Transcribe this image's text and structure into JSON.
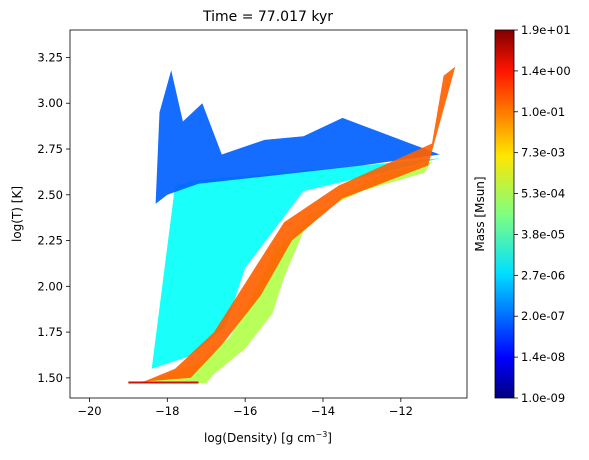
{
  "chart_data": {
    "type": "heatmap",
    "title": "Time = 77.017 kyr",
    "xlabel": "log(Density) [g cm",
    "xlabel_sup": "−3",
    "xlabel_end": "]",
    "ylabel": "log(T) [K]",
    "colorbar_label": "Mass [Msun]",
    "xlim": [
      -20.5,
      -10.3
    ],
    "ylim": [
      1.39,
      3.4
    ],
    "x_ticks": [
      -20,
      -18,
      -16,
      -14,
      -12
    ],
    "x_tick_labels": [
      "−20",
      "−18",
      "−16",
      "−14",
      "−12"
    ],
    "y_ticks": [
      1.5,
      1.75,
      2.0,
      2.25,
      2.5,
      2.75,
      3.0,
      3.25
    ],
    "y_tick_labels": [
      "1.50",
      "1.75",
      "2.00",
      "2.25",
      "2.50",
      "2.75",
      "3.00",
      "3.25"
    ],
    "colorbar_ticks": [
      "1.0e-09",
      "1.4e-08",
      "2.0e-07",
      "2.7e-06",
      "3.8e-05",
      "5.3e-04",
      "7.3e-03",
      "1.0e-01",
      "1.4e+00",
      "1.9e+01"
    ],
    "colormap": "jet",
    "log_color_scale": true,
    "grid": false,
    "regions": [
      {
        "name": "cold-dense-band",
        "points": [
          [
            -19.0,
            1.47
          ],
          [
            -17.0,
            1.47
          ],
          [
            -16.8,
            1.52
          ],
          [
            -16.0,
            1.66
          ],
          [
            -15.3,
            1.85
          ],
          [
            -15.0,
            2.05
          ],
          [
            -14.5,
            2.3
          ],
          [
            -13.6,
            2.48
          ],
          [
            -12.6,
            2.6
          ],
          [
            -11.2,
            2.68
          ],
          [
            -11.4,
            2.62
          ],
          [
            -13.0,
            2.52
          ],
          [
            -14.2,
            2.4
          ],
          [
            -15.2,
            2.2
          ],
          [
            -15.8,
            1.95
          ],
          [
            -16.4,
            1.72
          ],
          [
            -17.2,
            1.58
          ],
          [
            -18.4,
            1.49
          ]
        ],
        "level": 0.55
      },
      {
        "name": "warm-diffuse",
        "points": [
          [
            -18.4,
            1.55
          ],
          [
            -17.8,
            2.55
          ],
          [
            -17.2,
            2.58
          ],
          [
            -15.2,
            2.62
          ],
          [
            -13.0,
            2.66
          ],
          [
            -11.0,
            2.7
          ],
          [
            -12.5,
            2.62
          ],
          [
            -14.5,
            2.52
          ],
          [
            -16.0,
            2.1
          ],
          [
            -16.5,
            1.78
          ],
          [
            -17.4,
            1.62
          ]
        ],
        "level": 0.38
      },
      {
        "name": "hot-high",
        "points": [
          [
            -18.3,
            2.45
          ],
          [
            -18.2,
            2.95
          ],
          [
            -17.9,
            3.18
          ],
          [
            -17.6,
            2.9
          ],
          [
            -17.1,
            3.0
          ],
          [
            -16.6,
            2.72
          ],
          [
            -15.5,
            2.8
          ],
          [
            -14.5,
            2.82
          ],
          [
            -13.5,
            2.92
          ],
          [
            -12.0,
            2.8
          ],
          [
            -11.0,
            2.72
          ],
          [
            -13.0,
            2.66
          ],
          [
            -15.5,
            2.6
          ],
          [
            -17.2,
            2.56
          ],
          [
            -18.0,
            2.5
          ]
        ],
        "level": 0.22
      },
      {
        "name": "ridge",
        "points": [
          [
            -18.6,
            1.48
          ],
          [
            -17.4,
            1.5
          ],
          [
            -16.6,
            1.68
          ],
          [
            -15.6,
            1.95
          ],
          [
            -14.8,
            2.25
          ],
          [
            -13.5,
            2.48
          ],
          [
            -11.3,
            2.66
          ],
          [
            -10.6,
            3.2
          ],
          [
            -10.9,
            3.15
          ],
          [
            -11.2,
            2.78
          ],
          [
            -13.6,
            2.55
          ],
          [
            -15.0,
            2.35
          ],
          [
            -15.9,
            2.05
          ],
          [
            -16.8,
            1.75
          ],
          [
            -17.8,
            1.55
          ]
        ],
        "level": 0.78
      }
    ]
  }
}
